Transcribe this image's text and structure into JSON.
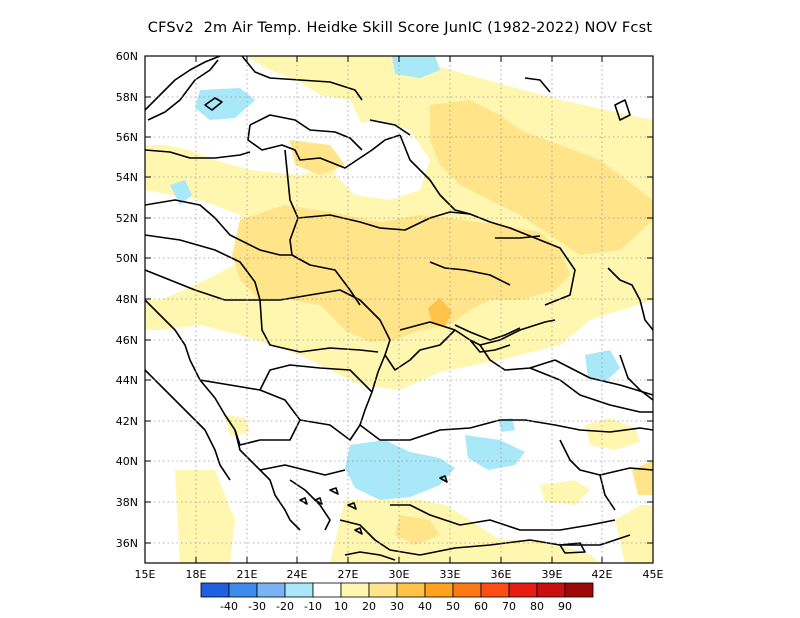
{
  "title": "CFSv2  2m Air Temp. Heidke Skill Score JunIC (1982-2022) NOV Fcst",
  "map": {
    "lon_range": [
      15,
      45
    ],
    "lat_range": [
      35,
      60
    ],
    "lat_ticks": [
      "60N",
      "58N",
      "56N",
      "54N",
      "52N",
      "50N",
      "48N",
      "46N",
      "44N",
      "42N",
      "40N",
      "38N",
      "36N"
    ],
    "lon_ticks": [
      "15E",
      "18E",
      "21E",
      "24E",
      "27E",
      "30E",
      "33E",
      "36E",
      "39E",
      "42E",
      "45E"
    ],
    "grid": "dotted"
  },
  "colorbar": {
    "colors": [
      "#1f5fe0",
      "#3c8cf0",
      "#78b4f5",
      "#a8e8f8",
      "#ffffff",
      "#fff6b0",
      "#ffe48a",
      "#ffc34a",
      "#ffa21e",
      "#ff7814",
      "#ff4e14",
      "#e51b14",
      "#c81010",
      "#a00808"
    ],
    "labels": [
      "-40",
      "-30",
      "-20",
      "-10",
      "10",
      "20",
      "30",
      "40",
      "50",
      "60",
      "70",
      "80",
      "90"
    ]
  }
}
